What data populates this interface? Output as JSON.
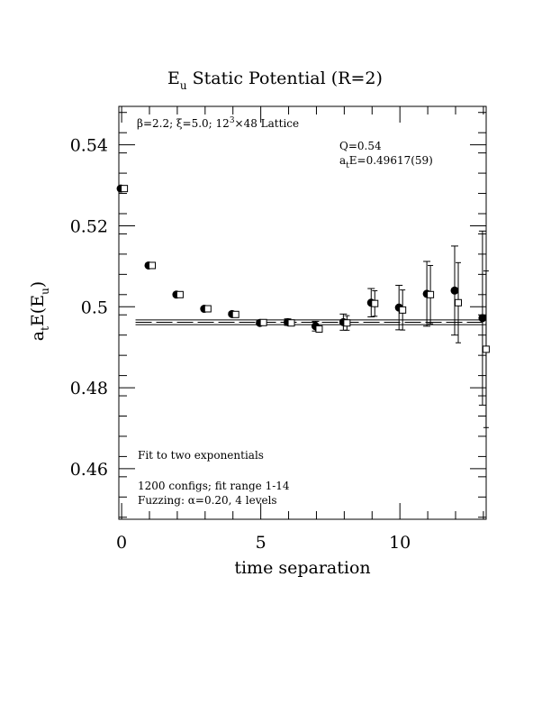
{
  "chart_data": {
    "type": "scatter",
    "title_main": "E",
    "title_sub": "u",
    "title_rest": " Static Potential (R=2)",
    "xlabel": "time separation",
    "ylabel_main": "a",
    "ylabel_sub1": "t",
    "ylabel_mid": "E(E",
    "ylabel_sub2": "u",
    "ylabel_end": ")",
    "xlim": [
      -0.1,
      13.1
    ],
    "ylim": [
      0.4475,
      0.5495
    ],
    "x_ticks": [
      0,
      5,
      10
    ],
    "x_tick_labels": [
      "0",
      "5",
      "10"
    ],
    "y_ticks": [
      0.46,
      0.48,
      0.5,
      0.52,
      0.54
    ],
    "y_tick_labels": [
      "0.46",
      "0.48",
      "0.5",
      "0.52",
      "0.54"
    ],
    "annotations": {
      "lattice_pre": "β=2.2; ξ=5.0; 12",
      "lattice_sup": "3",
      "lattice_post": "×48 Lattice",
      "q_value": "Q=0.54",
      "energy_pre": "a",
      "energy_sub": "t",
      "energy_post": "E=0.49617(59)",
      "fit_type": "Fit to two exponentials",
      "configs": "1200 configs; fit range 1-14",
      "fuzzing": "Fuzzing: α=0.20, 4 levels"
    },
    "fit": {
      "value": 0.49617,
      "error": 0.00059,
      "x_range": [
        0.5,
        13.1
      ]
    },
    "series": [
      {
        "marker": "filled-circle",
        "points": [
          {
            "x": 0,
            "y": 0.5292,
            "err": 0.0002
          },
          {
            "x": 1,
            "y": 0.5102,
            "err": 0.0003
          },
          {
            "x": 2,
            "y": 0.503,
            "err": 0.0003
          },
          {
            "x": 3,
            "y": 0.4995,
            "err": 0.0003
          },
          {
            "x": 4,
            "y": 0.4982,
            "err": 0.0004
          },
          {
            "x": 5,
            "y": 0.496,
            "err": 0.0005
          },
          {
            "x": 6,
            "y": 0.4962,
            "err": 0.0008
          },
          {
            "x": 7,
            "y": 0.4952,
            "err": 0.0012
          },
          {
            "x": 8,
            "y": 0.4962,
            "err": 0.002
          },
          {
            "x": 9,
            "y": 0.501,
            "err": 0.0035
          },
          {
            "x": 10,
            "y": 0.4998,
            "err": 0.0055
          },
          {
            "x": 11,
            "y": 0.5032,
            "err": 0.008
          },
          {
            "x": 12,
            "y": 0.504,
            "err": 0.011
          },
          {
            "x": 13,
            "y": 0.4972,
            "err": 0.0215
          }
        ]
      },
      {
        "marker": "open-square",
        "points": [
          {
            "x": 0,
            "y": 0.5292
          },
          {
            "x": 1,
            "y": 0.5102
          },
          {
            "x": 2,
            "y": 0.503
          },
          {
            "x": 3,
            "y": 0.4995
          },
          {
            "x": 4,
            "y": 0.4981
          },
          {
            "x": 5,
            "y": 0.4961
          },
          {
            "x": 6,
            "y": 0.496
          },
          {
            "x": 7,
            "y": 0.4945
          },
          {
            "x": 8,
            "y": 0.496
          },
          {
            "x": 9,
            "y": 0.5008
          },
          {
            "x": 10,
            "y": 0.4992
          },
          {
            "x": 11,
            "y": 0.503
          },
          {
            "x": 12,
            "y": 0.501
          },
          {
            "x": 13,
            "y": 0.4895
          }
        ]
      }
    ]
  }
}
